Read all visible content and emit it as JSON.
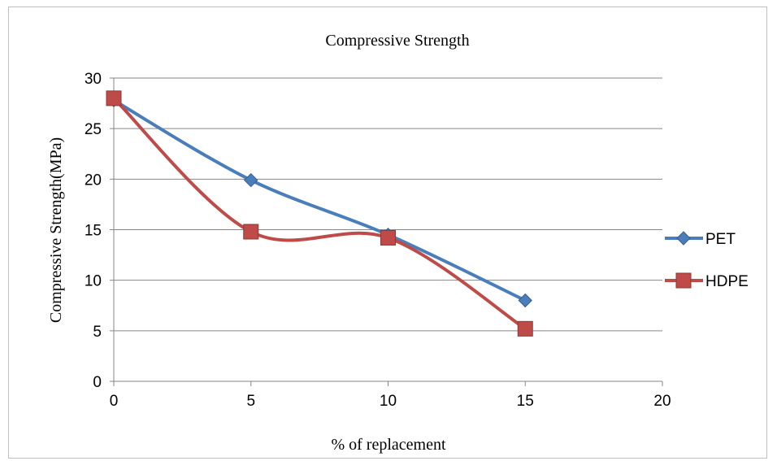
{
  "chart_data": {
    "type": "line",
    "title": "Compressive Strength",
    "xlabel": "% of replacement",
    "ylabel": "Compressive Strength(MPa)",
    "xlim": [
      0,
      20
    ],
    "ylim": [
      0,
      30
    ],
    "x_ticks": [
      0,
      5,
      10,
      15,
      20
    ],
    "y_ticks": [
      0,
      5,
      10,
      15,
      20,
      25,
      30
    ],
    "grid": "horizontal",
    "legend_position": "right",
    "smooth": true,
    "x": [
      0,
      5,
      10,
      15
    ],
    "series": [
      {
        "name": "PET",
        "values": [
          27.8,
          19.9,
          14.5,
          8.0
        ],
        "color": "#4a7ebb",
        "marker": "diamond"
      },
      {
        "name": "HDPE",
        "values": [
          28.0,
          14.8,
          14.2,
          5.2
        ],
        "color": "#be4b48",
        "marker": "square"
      }
    ]
  }
}
